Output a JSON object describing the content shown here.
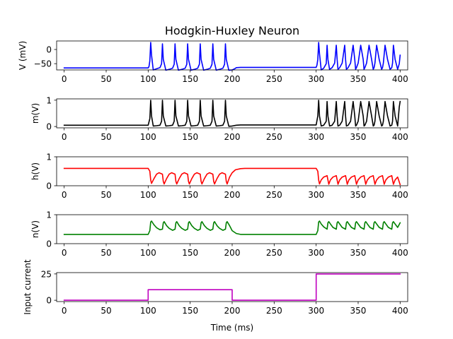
{
  "figure": {
    "title": "Hodgkin-Huxley Neuron",
    "xlabel": "Time (ms)"
  },
  "chart_data": [
    {
      "type": "line",
      "ylabel": "V (mV)",
      "xlim": [
        -9,
        409
      ],
      "ylim": [
        -72,
        30
      ],
      "xticks": [
        0,
        50,
        100,
        150,
        200,
        250,
        300,
        350,
        400
      ],
      "xtick_labels": [
        "0",
        "50",
        "100",
        "150",
        "200",
        "250",
        "300",
        "350",
        "400"
      ],
      "yticks": [
        0,
        -50
      ],
      "ytick_labels": [
        "0",
        "−50"
      ],
      "grid": false,
      "series": [
        {
          "color": "#0000ff",
          "x": [
            0,
            100,
            101,
            102,
            103,
            104,
            106,
            110,
            114,
            116,
            117,
            118,
            121,
            125,
            129,
            131,
            132,
            133,
            136,
            140,
            144,
            146,
            147,
            148,
            151,
            155,
            159,
            161,
            162,
            163,
            166,
            170,
            174,
            176,
            177,
            178,
            181,
            185,
            189,
            191,
            192,
            193,
            196,
            200,
            203,
            205,
            210,
            300,
            301,
            302,
            303,
            304,
            306,
            309,
            312,
            313,
            314,
            316,
            319,
            322,
            324,
            325,
            326,
            328,
            331,
            334,
            335,
            336,
            338,
            341,
            344,
            346,
            347,
            348,
            350,
            353,
            356,
            357,
            358,
            360,
            363,
            366,
            368,
            369,
            370,
            372,
            375,
            378,
            379,
            380,
            382,
            385,
            388,
            390,
            391,
            392,
            394,
            397,
            399,
            400
          ],
          "y": [
            -65,
            -65,
            -60,
            -40,
            25,
            -20,
            -72,
            -68,
            -64,
            -50,
            20,
            -35,
            -73,
            -70,
            -66,
            -52,
            20,
            -35,
            -73,
            -70,
            -66,
            -52,
            20,
            -35,
            -73,
            -70,
            -66,
            -52,
            20,
            -35,
            -73,
            -70,
            -66,
            -52,
            20,
            -35,
            -73,
            -70,
            -66,
            -52,
            20,
            -35,
            -73,
            -72,
            -68,
            -64,
            -63,
            -63,
            -55,
            -35,
            25,
            -15,
            -72,
            -66,
            -50,
            15,
            -35,
            -70,
            -64,
            -48,
            15,
            -35,
            -70,
            -64,
            -48,
            15,
            -35,
            -70,
            -64,
            -48,
            15,
            -35,
            -70,
            -64,
            -48,
            15,
            -35,
            -70,
            -64,
            -48,
            15,
            -35,
            -70,
            -64,
            -48,
            15,
            -35,
            -70,
            -64,
            -48,
            15,
            -35,
            -70,
            -64,
            -48,
            15,
            -35,
            -70,
            -50,
            -20
          ]
        }
      ]
    },
    {
      "type": "line",
      "ylabel": "m(V)",
      "xlim": [
        -9,
        409
      ],
      "ylim": [
        -0.05,
        1.05
      ],
      "xticks": [
        0,
        50,
        100,
        150,
        200,
        250,
        300,
        350,
        400
      ],
      "xtick_labels": [
        "0",
        "50",
        "100",
        "150",
        "200",
        "250",
        "300",
        "350",
        "400"
      ],
      "yticks": [
        0,
        1
      ],
      "ytick_labels": [
        "0",
        "1"
      ],
      "grid": false,
      "series": [
        {
          "color": "#000000",
          "x": [
            0,
            100,
            102,
            103,
            104,
            106,
            110,
            114,
            116,
            117,
            118,
            121,
            125,
            129,
            131,
            132,
            133,
            136,
            140,
            144,
            146,
            147,
            148,
            151,
            155,
            159,
            161,
            162,
            163,
            166,
            170,
            174,
            176,
            177,
            178,
            181,
            185,
            189,
            191,
            192,
            193,
            196,
            200,
            205,
            210,
            300,
            302,
            303,
            304,
            306,
            309,
            312,
            313,
            314,
            316,
            319,
            322,
            324,
            325,
            326,
            328,
            331,
            334,
            335,
            336,
            338,
            341,
            344,
            346,
            347,
            348,
            350,
            353,
            356,
            357,
            358,
            360,
            363,
            366,
            368,
            369,
            370,
            372,
            375,
            378,
            379,
            380,
            382,
            385,
            388,
            390,
            391,
            392,
            394,
            397,
            399,
            400
          ],
          "y": [
            0.05,
            0.05,
            0.3,
            1.0,
            0.4,
            0.02,
            0.03,
            0.05,
            0.2,
            1.0,
            0.4,
            0.02,
            0.03,
            0.05,
            0.2,
            1.0,
            0.4,
            0.02,
            0.03,
            0.05,
            0.2,
            1.0,
            0.4,
            0.02,
            0.03,
            0.05,
            0.2,
            1.0,
            0.4,
            0.02,
            0.03,
            0.05,
            0.2,
            1.0,
            0.4,
            0.02,
            0.03,
            0.05,
            0.2,
            1.0,
            0.4,
            0.01,
            0.02,
            0.05,
            0.06,
            0.06,
            0.4,
            1.0,
            0.4,
            0.02,
            0.05,
            0.2,
            0.95,
            0.4,
            0.02,
            0.05,
            0.2,
            0.95,
            0.4,
            0.02,
            0.05,
            0.2,
            0.95,
            0.4,
            0.02,
            0.05,
            0.2,
            0.95,
            0.4,
            0.02,
            0.05,
            0.2,
            0.95,
            0.4,
            0.02,
            0.05,
            0.2,
            0.95,
            0.4,
            0.02,
            0.05,
            0.2,
            0.95,
            0.4,
            0.02,
            0.05,
            0.2,
            0.95,
            0.4,
            0.02,
            0.05,
            0.2,
            0.95,
            0.4,
            0.02,
            0.75,
            0.95
          ]
        }
      ]
    },
    {
      "type": "line",
      "ylabel": "h(V)",
      "xlim": [
        -9,
        409
      ],
      "ylim": [
        0,
        1
      ],
      "xticks": [
        0,
        50,
        100,
        150,
        200,
        250,
        300,
        350,
        400
      ],
      "xtick_labels": [
        "0",
        "50",
        "100",
        "150",
        "200",
        "250",
        "300",
        "350",
        "400"
      ],
      "yticks": [
        0,
        1
      ],
      "ytick_labels": [
        "0",
        "1"
      ],
      "grid": false,
      "series": [
        {
          "color": "#ff0000",
          "x": [
            0,
            100,
            102,
            103,
            104,
            107,
            110,
            113,
            117,
            118,
            119,
            122,
            125,
            128,
            132,
            133,
            134,
            137,
            140,
            143,
            147,
            148,
            149,
            152,
            155,
            158,
            162,
            163,
            164,
            167,
            170,
            173,
            177,
            178,
            179,
            182,
            185,
            188,
            192,
            193,
            194,
            197,
            200,
            204,
            210,
            215,
            300,
            302,
            303,
            304,
            306,
            309,
            313,
            314,
            315,
            317,
            320,
            324,
            325,
            326,
            328,
            331,
            335,
            336,
            337,
            339,
            342,
            346,
            347,
            348,
            350,
            353,
            357,
            358,
            359,
            361,
            364,
            368,
            369,
            370,
            372,
            375,
            379,
            380,
            381,
            383,
            386,
            390,
            391,
            392,
            394,
            397,
            400
          ],
          "y": [
            0.6,
            0.6,
            0.5,
            0.2,
            0.08,
            0.25,
            0.4,
            0.45,
            0.4,
            0.15,
            0.06,
            0.25,
            0.4,
            0.45,
            0.4,
            0.15,
            0.06,
            0.25,
            0.4,
            0.45,
            0.4,
            0.15,
            0.06,
            0.25,
            0.4,
            0.45,
            0.4,
            0.15,
            0.06,
            0.25,
            0.4,
            0.45,
            0.4,
            0.15,
            0.06,
            0.25,
            0.4,
            0.45,
            0.4,
            0.15,
            0.06,
            0.3,
            0.45,
            0.55,
            0.59,
            0.6,
            0.6,
            0.5,
            0.2,
            0.06,
            0.2,
            0.3,
            0.35,
            0.2,
            0.05,
            0.2,
            0.3,
            0.35,
            0.2,
            0.05,
            0.2,
            0.3,
            0.35,
            0.2,
            0.05,
            0.2,
            0.3,
            0.35,
            0.2,
            0.05,
            0.2,
            0.3,
            0.35,
            0.2,
            0.05,
            0.2,
            0.3,
            0.35,
            0.2,
            0.05,
            0.2,
            0.3,
            0.35,
            0.2,
            0.05,
            0.2,
            0.3,
            0.35,
            0.2,
            0.05,
            0.2,
            0.3,
            0.04
          ]
        }
      ]
    },
    {
      "type": "line",
      "ylabel": "n(V)",
      "xlim": [
        -9,
        409
      ],
      "ylim": [
        0,
        1
      ],
      "xticks": [
        0,
        50,
        100,
        150,
        200,
        250,
        300,
        350,
        400
      ],
      "xtick_labels": [
        "0",
        "50",
        "100",
        "150",
        "200",
        "250",
        "300",
        "350",
        "400"
      ],
      "yticks": [
        0,
        1
      ],
      "ytick_labels": [
        "0",
        "1"
      ],
      "grid": false,
      "series": [
        {
          "color": "#008000",
          "x": [
            0,
            100,
            102,
            103,
            104,
            107,
            110,
            114,
            117,
            118,
            119,
            122,
            125,
            129,
            132,
            133,
            134,
            137,
            140,
            144,
            147,
            148,
            149,
            152,
            155,
            159,
            162,
            163,
            164,
            167,
            170,
            174,
            177,
            178,
            179,
            182,
            185,
            189,
            192,
            193,
            194,
            197,
            200,
            205,
            210,
            300,
            302,
            303,
            304,
            306,
            309,
            313,
            314,
            315,
            317,
            320,
            324,
            325,
            326,
            328,
            331,
            335,
            336,
            337,
            339,
            342,
            346,
            347,
            348,
            350,
            353,
            357,
            358,
            359,
            361,
            364,
            368,
            369,
            370,
            372,
            375,
            379,
            380,
            381,
            383,
            386,
            390,
            391,
            392,
            394,
            397,
            400
          ],
          "y": [
            0.32,
            0.32,
            0.45,
            0.75,
            0.78,
            0.65,
            0.55,
            0.48,
            0.5,
            0.72,
            0.76,
            0.62,
            0.53,
            0.46,
            0.5,
            0.72,
            0.76,
            0.62,
            0.53,
            0.46,
            0.5,
            0.72,
            0.76,
            0.62,
            0.53,
            0.46,
            0.5,
            0.72,
            0.76,
            0.62,
            0.53,
            0.46,
            0.5,
            0.72,
            0.76,
            0.62,
            0.53,
            0.46,
            0.5,
            0.72,
            0.76,
            0.62,
            0.45,
            0.35,
            0.32,
            0.32,
            0.45,
            0.75,
            0.78,
            0.68,
            0.58,
            0.5,
            0.72,
            0.76,
            0.68,
            0.56,
            0.5,
            0.72,
            0.76,
            0.68,
            0.56,
            0.5,
            0.72,
            0.76,
            0.68,
            0.56,
            0.5,
            0.72,
            0.76,
            0.68,
            0.56,
            0.5,
            0.72,
            0.76,
            0.68,
            0.56,
            0.5,
            0.72,
            0.76,
            0.68,
            0.56,
            0.5,
            0.72,
            0.76,
            0.68,
            0.56,
            0.5,
            0.72,
            0.76,
            0.68,
            0.56,
            0.72
          ]
        }
      ]
    },
    {
      "type": "line",
      "ylabel": "Input current",
      "xlim": [
        -9,
        409
      ],
      "ylim": [
        -1.25,
        26.25
      ],
      "xticks": [
        0,
        50,
        100,
        150,
        200,
        250,
        300,
        350,
        400
      ],
      "xtick_labels": [
        "0",
        "50",
        "100",
        "150",
        "200",
        "250",
        "300",
        "350",
        "400"
      ],
      "yticks": [
        0,
        25
      ],
      "ytick_labels": [
        "0",
        "25"
      ],
      "grid": false,
      "series": [
        {
          "color": "#bf00bf",
          "x": [
            0,
            100,
            100,
            200,
            200,
            300,
            300,
            400
          ],
          "y": [
            0,
            0,
            10,
            10,
            0,
            0,
            25,
            25
          ]
        }
      ]
    }
  ]
}
